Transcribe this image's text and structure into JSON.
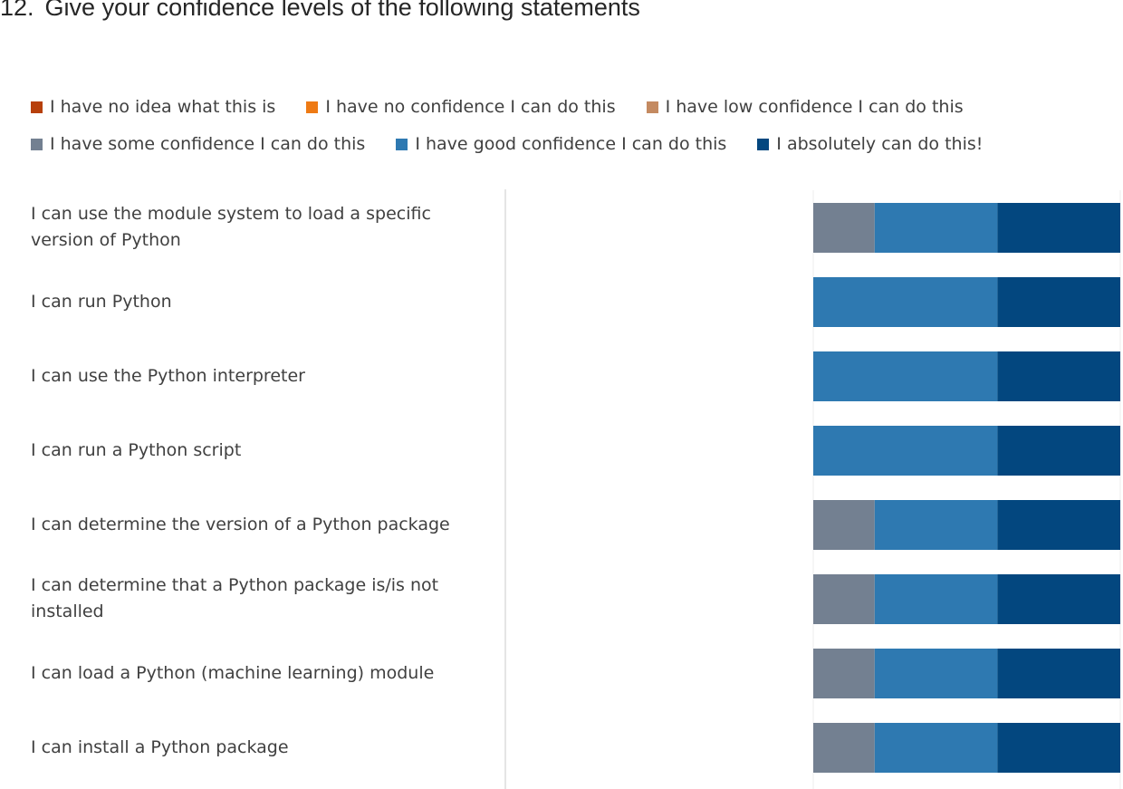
{
  "question": {
    "number": "12.",
    "title": "Give your confidence levels of the following statements"
  },
  "chart_data": {
    "type": "bar",
    "orientation": "horizontal",
    "stacked": true,
    "normalized": true,
    "title": "Give your confidence levels of the following statements",
    "legend_position": "top",
    "grid": false,
    "xlim": [
      0,
      100
    ],
    "categories": [
      "I can use the module system to load a specific version of Python",
      "I can run Python",
      "I can use the Python interpreter",
      "I can run a Python script",
      "I can determine the version of a Python package",
      "I can determine that a Python package is/is not installed",
      "I can load a Python (machine learning) module",
      "I can install a Python package"
    ],
    "series": [
      {
        "name": "I have no idea what this is",
        "color": "#b7400b",
        "values": [
          0,
          0,
          0,
          0,
          0,
          0,
          0,
          0
        ]
      },
      {
        "name": "I have no confidence I can do this",
        "color": "#ee7a14",
        "values": [
          0,
          0,
          0,
          0,
          0,
          0,
          0,
          0
        ]
      },
      {
        "name": "I have low confidence I can do this",
        "color": "#c48a61",
        "values": [
          0,
          0,
          0,
          0,
          0,
          0,
          0,
          0
        ]
      },
      {
        "name": "I have some confidence I can do this",
        "color": "#738091",
        "values": [
          20,
          0,
          0,
          0,
          20,
          20,
          20,
          20
        ]
      },
      {
        "name": "I have good confidence I can do this",
        "color": "#2e79b1",
        "values": [
          40,
          60,
          60,
          60,
          40,
          40,
          40,
          40
        ]
      },
      {
        "name": "I absolutely can do this!",
        "color": "#03477f",
        "values": [
          40,
          40,
          40,
          40,
          40,
          40,
          40,
          40
        ]
      }
    ]
  }
}
